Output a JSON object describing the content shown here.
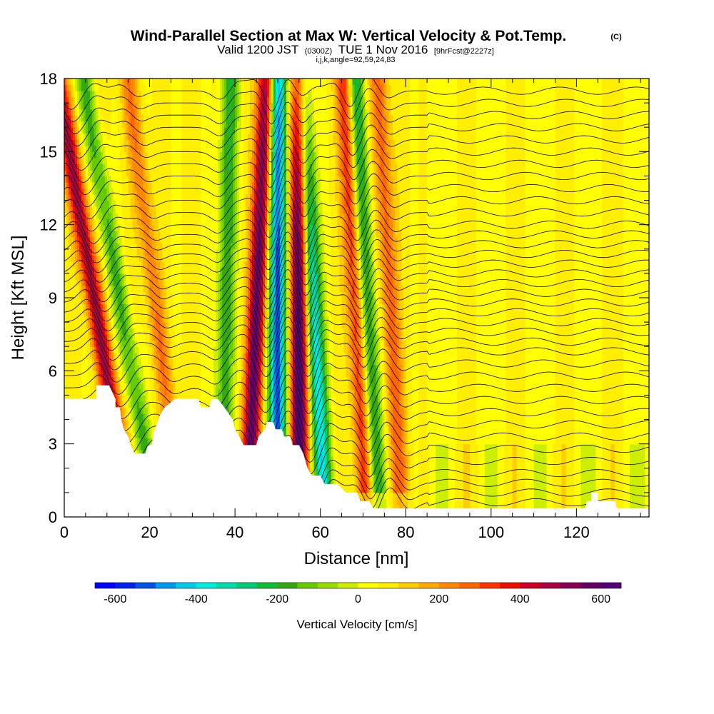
{
  "title": {
    "main": "Wind-Parallel Section at Max W: Vertical Velocity & Pot.Temp.",
    "main_mark": "(C)",
    "valid_prefix": "Valid 1200 JST",
    "valid_utc": "(0300Z)",
    "valid_date": "TUE 1 Nov 2016",
    "fcst": "[9hrFcst@2227z]",
    "indices": "i,j,k,angle=92,59,24,83"
  },
  "chart_data": {
    "type": "heatmap",
    "xlabel": "Distance [nm]",
    "ylabel": "Height [Kft MSL]",
    "xlim": [
      0,
      137
    ],
    "ylim": [
      0,
      18
    ],
    "x_ticks": [
      0,
      20,
      40,
      60,
      80,
      100,
      120
    ],
    "y_ticks": [
      0,
      3,
      6,
      9,
      12,
      15,
      18
    ],
    "terrain_kft": [
      [
        0,
        4.85
      ],
      [
        7.5,
        4.85
      ],
      [
        7.5,
        5.4
      ],
      [
        10.5,
        5.4
      ],
      [
        12,
        4.85
      ],
      [
        12,
        4.5
      ],
      [
        13,
        4.5
      ],
      [
        13.5,
        3.9
      ],
      [
        14,
        3.6
      ],
      [
        15,
        3.3
      ],
      [
        15.5,
        3.0
      ],
      [
        16.5,
        2.6
      ],
      [
        19,
        2.6
      ],
      [
        19.5,
        2.9
      ],
      [
        20.5,
        3.0
      ],
      [
        21,
        3.5
      ],
      [
        22.5,
        4.2
      ],
      [
        23.5,
        4.5
      ],
      [
        26,
        4.85
      ],
      [
        31.5,
        4.85
      ],
      [
        32,
        4.5
      ],
      [
        34,
        4.5
      ],
      [
        34.5,
        4.85
      ],
      [
        36,
        4.85
      ],
      [
        37.5,
        4.5
      ],
      [
        39.5,
        4.0
      ],
      [
        40,
        3.6
      ],
      [
        41,
        3.3
      ],
      [
        42,
        2.95
      ],
      [
        45,
        2.95
      ],
      [
        45.5,
        3.3
      ],
      [
        47,
        3.6
      ],
      [
        47.5,
        3.9
      ],
      [
        49,
        3.9
      ],
      [
        49.5,
        3.6
      ],
      [
        51,
        3.6
      ],
      [
        51.5,
        3.3
      ],
      [
        53,
        3.3
      ],
      [
        53.5,
        2.95
      ],
      [
        55,
        2.95
      ],
      [
        56,
        2.6
      ],
      [
        56.5,
        2.3
      ],
      [
        57,
        2.0
      ],
      [
        58,
        1.7
      ],
      [
        60,
        1.7
      ],
      [
        61,
        1.35
      ],
      [
        64,
        1.35
      ],
      [
        66,
        1.0
      ],
      [
        68.5,
        1.0
      ],
      [
        69.5,
        0.65
      ],
      [
        71.5,
        0.65
      ],
      [
        72.5,
        0.35
      ],
      [
        85,
        0.35
      ],
      [
        90,
        0.35
      ],
      [
        122,
        0.35
      ],
      [
        122.5,
        0.65
      ],
      [
        123.5,
        0.65
      ],
      [
        123.5,
        1.0
      ],
      [
        125,
        1.0
      ],
      [
        125,
        0.65
      ],
      [
        129,
        0.65
      ],
      [
        129.5,
        0.35
      ],
      [
        137,
        0.35
      ]
    ],
    "wave_updrafts": [
      {
        "x_base": 15.5,
        "tilt_nm_per_kft": -0.95,
        "amplitude_cms": 420
      },
      {
        "x_base": 43.0,
        "tilt_nm_per_kft": 0.25,
        "amplitude_cms": 520
      },
      {
        "x_base": 55.0,
        "tilt_nm_per_kft": 0.0,
        "amplitude_cms": 600
      },
      {
        "x_base": 71.0,
        "tilt_nm_per_kft": -0.3,
        "amplitude_cms": 320
      },
      {
        "x_base": 79.0,
        "tilt_nm_per_kft": -0.3,
        "amplitude_cms": 220
      },
      {
        "x_base": 27.5,
        "tilt_nm_per_kft": -0.7,
        "amplitude_cms": 180
      }
    ],
    "wave_downdrafts": [
      {
        "x_base": 21.5,
        "tilt_nm_per_kft": -0.95,
        "amplitude_cms": -220
      },
      {
        "x_base": 37.0,
        "tilt_nm_per_kft": 0.1,
        "amplitude_cms": -260
      },
      {
        "x_base": 50.0,
        "tilt_nm_per_kft": 0.0,
        "amplitude_cms": -600
      },
      {
        "x_base": 61.0,
        "tilt_nm_per_kft": -0.3,
        "amplitude_cms": -450
      },
      {
        "x_base": 73.5,
        "tilt_nm_per_kft": -0.3,
        "amplitude_cms": -320
      }
    ],
    "theta_contours_kft": [
      0.6,
      1.0,
      1.4,
      1.8,
      2.3,
      2.8,
      3.3,
      3.8,
      4.3,
      4.8,
      5.3,
      5.8,
      6.3,
      6.8,
      7.2,
      7.6,
      8.0,
      8.4,
      8.8,
      9.2,
      9.6,
      10.0,
      10.4,
      10.8,
      11.2,
      11.6,
      12.0,
      12.5,
      13.0,
      13.5,
      14.0,
      14.5,
      15.0,
      15.5,
      16.0,
      16.5,
      17.0,
      17.5
    ],
    "colorbar": {
      "label": "Vertical Velocity [cm/s]",
      "range": [
        -650,
        650
      ],
      "ticks": [
        -600,
        -400,
        -200,
        0,
        200,
        400,
        600
      ],
      "tick_labels": [
        "-600",
        "-400",
        "-200",
        "0",
        "200",
        "400",
        "600"
      ],
      "colors": [
        "#0000ff",
        "#0022ee",
        "#0055e5",
        "#0099ee",
        "#00ccee",
        "#00eedd",
        "#00ddaa",
        "#00cc77",
        "#11bb33",
        "#33aa11",
        "#66cc00",
        "#99dd00",
        "#ccee00",
        "#ffff00",
        "#ffee00",
        "#ffcc00",
        "#ffaa00",
        "#ff8800",
        "#ff6600",
        "#ff3300",
        "#ee1100",
        "#cc0022",
        "#aa0044",
        "#880055",
        "#660066",
        "#550077"
      ]
    }
  }
}
